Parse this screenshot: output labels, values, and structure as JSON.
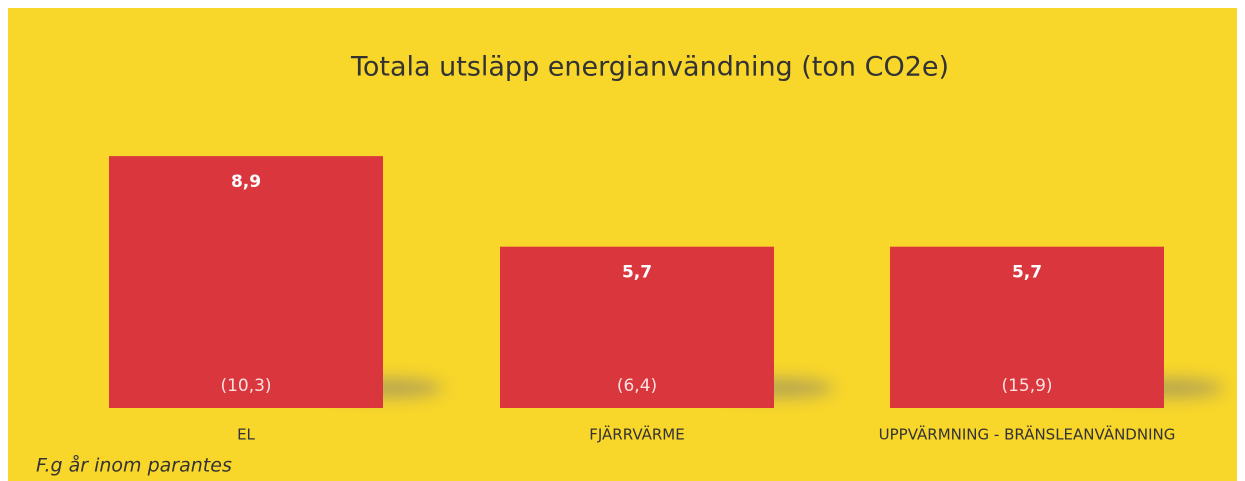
{
  "chart_data": {
    "type": "bar",
    "title": "Totala utsläpp energianvändning (ton CO2e)",
    "categories": [
      "EL",
      "FJÄRRVÄRME",
      "UPPVÄRMNING - BRÄNSLEANVÄNDNING"
    ],
    "values": [
      8.9,
      5.7,
      5.7
    ],
    "value_labels": [
      "8,9",
      "5,7",
      "5,7"
    ],
    "previous_labels": [
      "(10,3)",
      "(6,4)",
      "(15,9)"
    ],
    "note": "F.g år inom parantes",
    "color": "#d9363e",
    "background": "#f8d62a",
    "ylim": [
      0,
      10
    ]
  }
}
